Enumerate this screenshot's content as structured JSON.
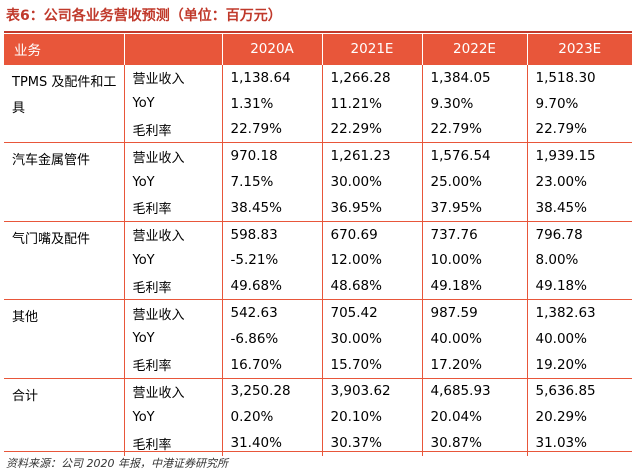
{
  "title": "表6：公司各业务营收预测（单位：百万元）",
  "header": {
    "segment": "业务",
    "years": [
      "2020A",
      "2021E",
      "2022E",
      "2023E"
    ]
  },
  "groups": [
    {
      "name": "TPMS 及配件和工具",
      "rows": [
        {
          "metric": "营业收入",
          "values": [
            "1,138.64",
            "1,266.28",
            "1,384.05",
            "1,518.30"
          ]
        },
        {
          "metric": "YoY",
          "values": [
            "1.31%",
            "11.21%",
            "9.30%",
            "9.70%"
          ]
        },
        {
          "metric": "毛利率",
          "values": [
            "22.79%",
            "22.29%",
            "22.79%",
            "22.79%"
          ]
        }
      ]
    },
    {
      "name": "汽车金属管件",
      "rows": [
        {
          "metric": "营业收入",
          "values": [
            "970.18",
            "1,261.23",
            "1,576.54",
            "1,939.15"
          ]
        },
        {
          "metric": "YoY",
          "values": [
            "7.15%",
            "30.00%",
            "25.00%",
            "23.00%"
          ]
        },
        {
          "metric": "毛利率",
          "values": [
            "38.45%",
            "36.95%",
            "37.95%",
            "38.45%"
          ]
        }
      ]
    },
    {
      "name": "气门嘴及配件",
      "rows": [
        {
          "metric": "营业收入",
          "values": [
            "598.83",
            "670.69",
            "737.76",
            "796.78"
          ]
        },
        {
          "metric": "YoY",
          "values": [
            "-5.21%",
            "12.00%",
            "10.00%",
            "8.00%"
          ]
        },
        {
          "metric": "毛利率",
          "values": [
            "49.68%",
            "48.68%",
            "49.18%",
            "49.18%"
          ]
        }
      ]
    },
    {
      "name": "其他",
      "rows": [
        {
          "metric": "营业收入",
          "values": [
            "542.63",
            "705.42",
            "987.59",
            "1,382.63"
          ]
        },
        {
          "metric": "YoY",
          "values": [
            "-6.86%",
            "30.00%",
            "40.00%",
            "40.00%"
          ]
        },
        {
          "metric": "毛利率",
          "values": [
            "16.70%",
            "15.70%",
            "17.20%",
            "19.20%"
          ]
        }
      ]
    },
    {
      "name": "合计",
      "rows": [
        {
          "metric": "营业收入",
          "values": [
            "3,250.28",
            "3,903.62",
            "4,685.93",
            "5,636.85"
          ]
        },
        {
          "metric": "YoY",
          "values": [
            "0.20%",
            "20.10%",
            "20.04%",
            "20.29%"
          ]
        },
        {
          "metric": "毛利率",
          "values": [
            "31.40%",
            "30.37%",
            "30.87%",
            "31.03%"
          ]
        }
      ]
    }
  ],
  "source": "资料来源：公司 2020 年报，中港证券研究所",
  "colors": {
    "accent": "#e8563a",
    "title": "#c0392b"
  }
}
